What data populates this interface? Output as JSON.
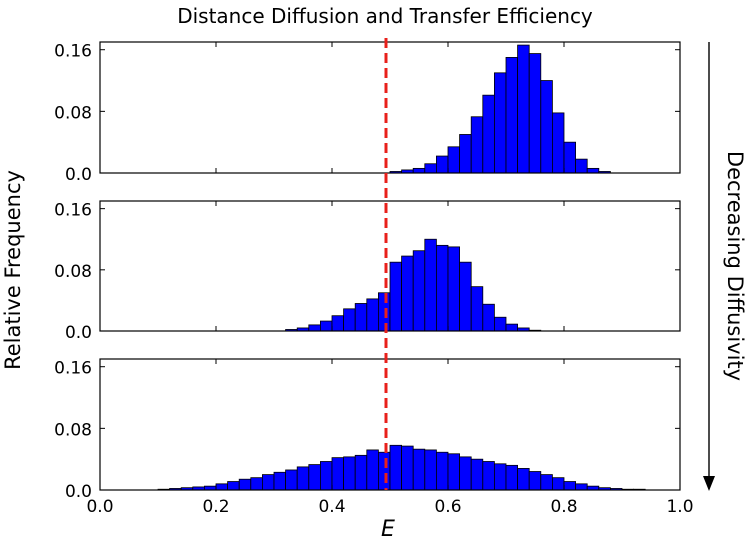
{
  "chart_data": {
    "type": "bar",
    "title": "Distance Diffusion and Transfer Efficiency",
    "xlabel": "E",
    "ylabel": "Relative Frequency",
    "side_label": "Decreasing Diffusivity",
    "bin_width": 0.02,
    "xlim": [
      0.0,
      1.0
    ],
    "ylim": [
      0.0,
      0.17
    ],
    "x_ticks": [
      "0.0",
      "0.2",
      "0.4",
      "0.6",
      "0.8",
      "1.0"
    ],
    "y_ticks": [
      "0.0",
      "0.08",
      "0.16"
    ],
    "reference_line": {
      "x": 0.5,
      "color": "#e8201b",
      "style": "dashed"
    },
    "bar_color": "#0000ff",
    "panels": [
      {
        "bin_starts": [
          0.5,
          0.52,
          0.54,
          0.56,
          0.58,
          0.6,
          0.62,
          0.64,
          0.66,
          0.68,
          0.7,
          0.72,
          0.74,
          0.76,
          0.78,
          0.8,
          0.82,
          0.84,
          0.86
        ],
        "values": [
          0.002,
          0.004,
          0.006,
          0.012,
          0.022,
          0.034,
          0.05,
          0.073,
          0.101,
          0.13,
          0.15,
          0.166,
          0.155,
          0.12,
          0.078,
          0.04,
          0.018,
          0.006,
          0.002
        ]
      },
      {
        "bin_starts": [
          0.32,
          0.34,
          0.36,
          0.38,
          0.4,
          0.42,
          0.44,
          0.46,
          0.48,
          0.5,
          0.52,
          0.54,
          0.56,
          0.58,
          0.6,
          0.62,
          0.64,
          0.66,
          0.68,
          0.7,
          0.72,
          0.74
        ],
        "values": [
          0.002,
          0.004,
          0.008,
          0.013,
          0.02,
          0.029,
          0.036,
          0.042,
          0.05,
          0.09,
          0.098,
          0.105,
          0.12,
          0.112,
          0.11,
          0.09,
          0.058,
          0.035,
          0.018,
          0.009,
          0.004,
          0.001
        ]
      },
      {
        "bin_starts": [
          0.1,
          0.12,
          0.14,
          0.16,
          0.18,
          0.2,
          0.22,
          0.24,
          0.26,
          0.28,
          0.3,
          0.32,
          0.34,
          0.36,
          0.38,
          0.4,
          0.42,
          0.44,
          0.46,
          0.48,
          0.5,
          0.52,
          0.54,
          0.56,
          0.58,
          0.6,
          0.62,
          0.64,
          0.66,
          0.68,
          0.7,
          0.72,
          0.74,
          0.76,
          0.78,
          0.8,
          0.82,
          0.84,
          0.86,
          0.88,
          0.9,
          0.92
        ],
        "values": [
          0.001,
          0.002,
          0.003,
          0.004,
          0.005,
          0.008,
          0.011,
          0.014,
          0.016,
          0.02,
          0.023,
          0.026,
          0.03,
          0.033,
          0.037,
          0.042,
          0.043,
          0.045,
          0.052,
          0.049,
          0.058,
          0.057,
          0.053,
          0.052,
          0.049,
          0.047,
          0.043,
          0.04,
          0.037,
          0.034,
          0.032,
          0.028,
          0.024,
          0.02,
          0.016,
          0.011,
          0.008,
          0.005,
          0.003,
          0.002,
          0.001,
          0.001
        ]
      }
    ]
  }
}
